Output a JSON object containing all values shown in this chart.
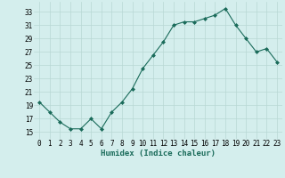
{
  "x": [
    0,
    1,
    2,
    3,
    4,
    5,
    6,
    7,
    8,
    9,
    10,
    11,
    12,
    13,
    14,
    15,
    16,
    17,
    18,
    19,
    20,
    21,
    22,
    23
  ],
  "y": [
    19.5,
    18.0,
    16.5,
    15.5,
    15.5,
    17.0,
    15.5,
    18.0,
    19.5,
    21.5,
    24.5,
    26.5,
    28.5,
    31.0,
    31.5,
    31.5,
    32.0,
    32.5,
    33.5,
    31.0,
    29.0,
    27.0,
    27.5,
    25.5
  ],
  "line_color": "#1a6b5a",
  "marker_color": "#1a6b5a",
  "bg_color": "#d4eeed",
  "grid_color": "#b8d8d4",
  "xlabel": "Humidex (Indice chaleur)",
  "ytick_labels": [
    "15",
    "17",
    "19",
    "21",
    "23",
    "25",
    "27",
    "29",
    "31",
    "33"
  ],
  "ytick_vals": [
    15,
    17,
    19,
    21,
    23,
    25,
    27,
    29,
    31,
    33
  ],
  "xtick_vals": [
    0,
    1,
    2,
    3,
    4,
    5,
    6,
    7,
    8,
    9,
    10,
    11,
    12,
    13,
    14,
    15,
    16,
    17,
    18,
    19,
    20,
    21,
    22,
    23
  ],
  "ylim": [
    14.0,
    34.5
  ],
  "xlim": [
    -0.5,
    23.5
  ],
  "tick_fontsize": 5.5,
  "xlabel_fontsize": 6.5
}
